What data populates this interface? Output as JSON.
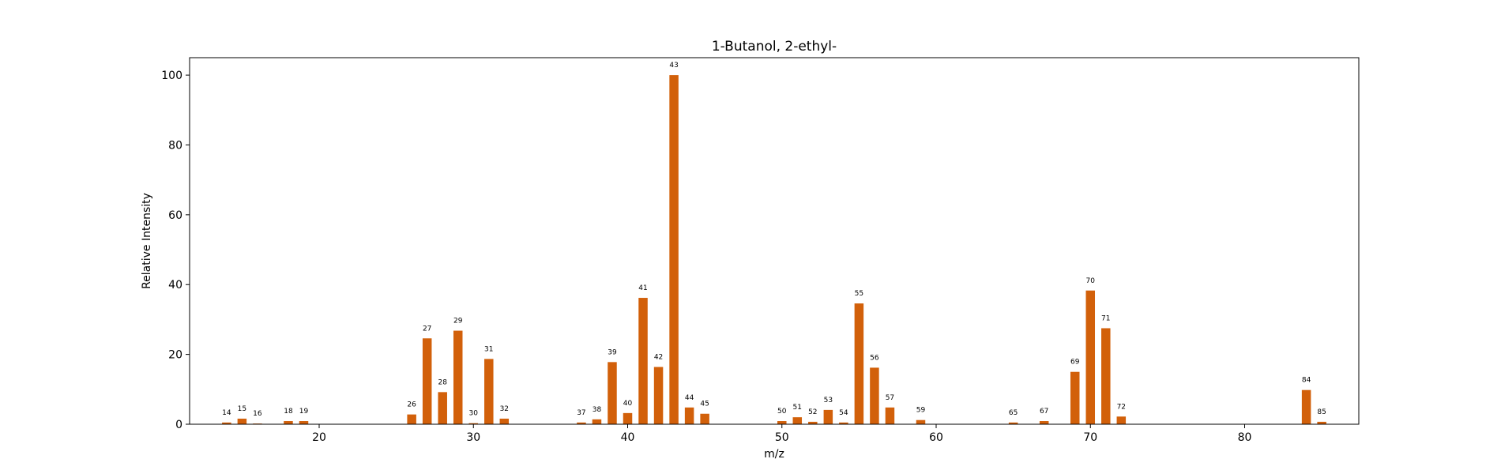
{
  "chart_data": {
    "type": "bar",
    "title": "1-Butanol, 2-ethyl-",
    "xlabel": "m/z",
    "ylabel": "Relative Intensity",
    "xlim": [
      11.6,
      87.4
    ],
    "ylim": [
      0,
      105
    ],
    "xticks": [
      20,
      30,
      40,
      50,
      60,
      70,
      80
    ],
    "yticks": [
      0,
      20,
      40,
      60,
      80,
      100
    ],
    "bar_color": "#d2600a",
    "grid": false,
    "legend": "none",
    "bar_labels": "m/z above each bar",
    "points": [
      {
        "x": 14,
        "y": 0.5
      },
      {
        "x": 15,
        "y": 1.6
      },
      {
        "x": 16,
        "y": 0.2
      },
      {
        "x": 18,
        "y": 0.9
      },
      {
        "x": 19,
        "y": 0.9
      },
      {
        "x": 26,
        "y": 2.8
      },
      {
        "x": 27,
        "y": 24.6
      },
      {
        "x": 28,
        "y": 9.2
      },
      {
        "x": 29,
        "y": 26.8
      },
      {
        "x": 30,
        "y": 0.3
      },
      {
        "x": 31,
        "y": 18.7
      },
      {
        "x": 32,
        "y": 1.6
      },
      {
        "x": 37,
        "y": 0.5
      },
      {
        "x": 38,
        "y": 1.4
      },
      {
        "x": 39,
        "y": 17.8
      },
      {
        "x": 40,
        "y": 3.2
      },
      {
        "x": 41,
        "y": 36.2
      },
      {
        "x": 42,
        "y": 16.4
      },
      {
        "x": 43,
        "y": 100
      },
      {
        "x": 44,
        "y": 4.8
      },
      {
        "x": 45,
        "y": 3.0
      },
      {
        "x": 50,
        "y": 0.9
      },
      {
        "x": 51,
        "y": 2.0
      },
      {
        "x": 52,
        "y": 0.7
      },
      {
        "x": 53,
        "y": 4.1
      },
      {
        "x": 54,
        "y": 0.5
      },
      {
        "x": 55,
        "y": 34.6
      },
      {
        "x": 56,
        "y": 16.2
      },
      {
        "x": 57,
        "y": 4.8
      },
      {
        "x": 59,
        "y": 1.2
      },
      {
        "x": 65,
        "y": 0.5
      },
      {
        "x": 67,
        "y": 0.9
      },
      {
        "x": 69,
        "y": 15.0
      },
      {
        "x": 70,
        "y": 38.3
      },
      {
        "x": 71,
        "y": 27.5
      },
      {
        "x": 72,
        "y": 2.2
      },
      {
        "x": 84,
        "y": 9.8
      },
      {
        "x": 85,
        "y": 0.7
      }
    ]
  }
}
